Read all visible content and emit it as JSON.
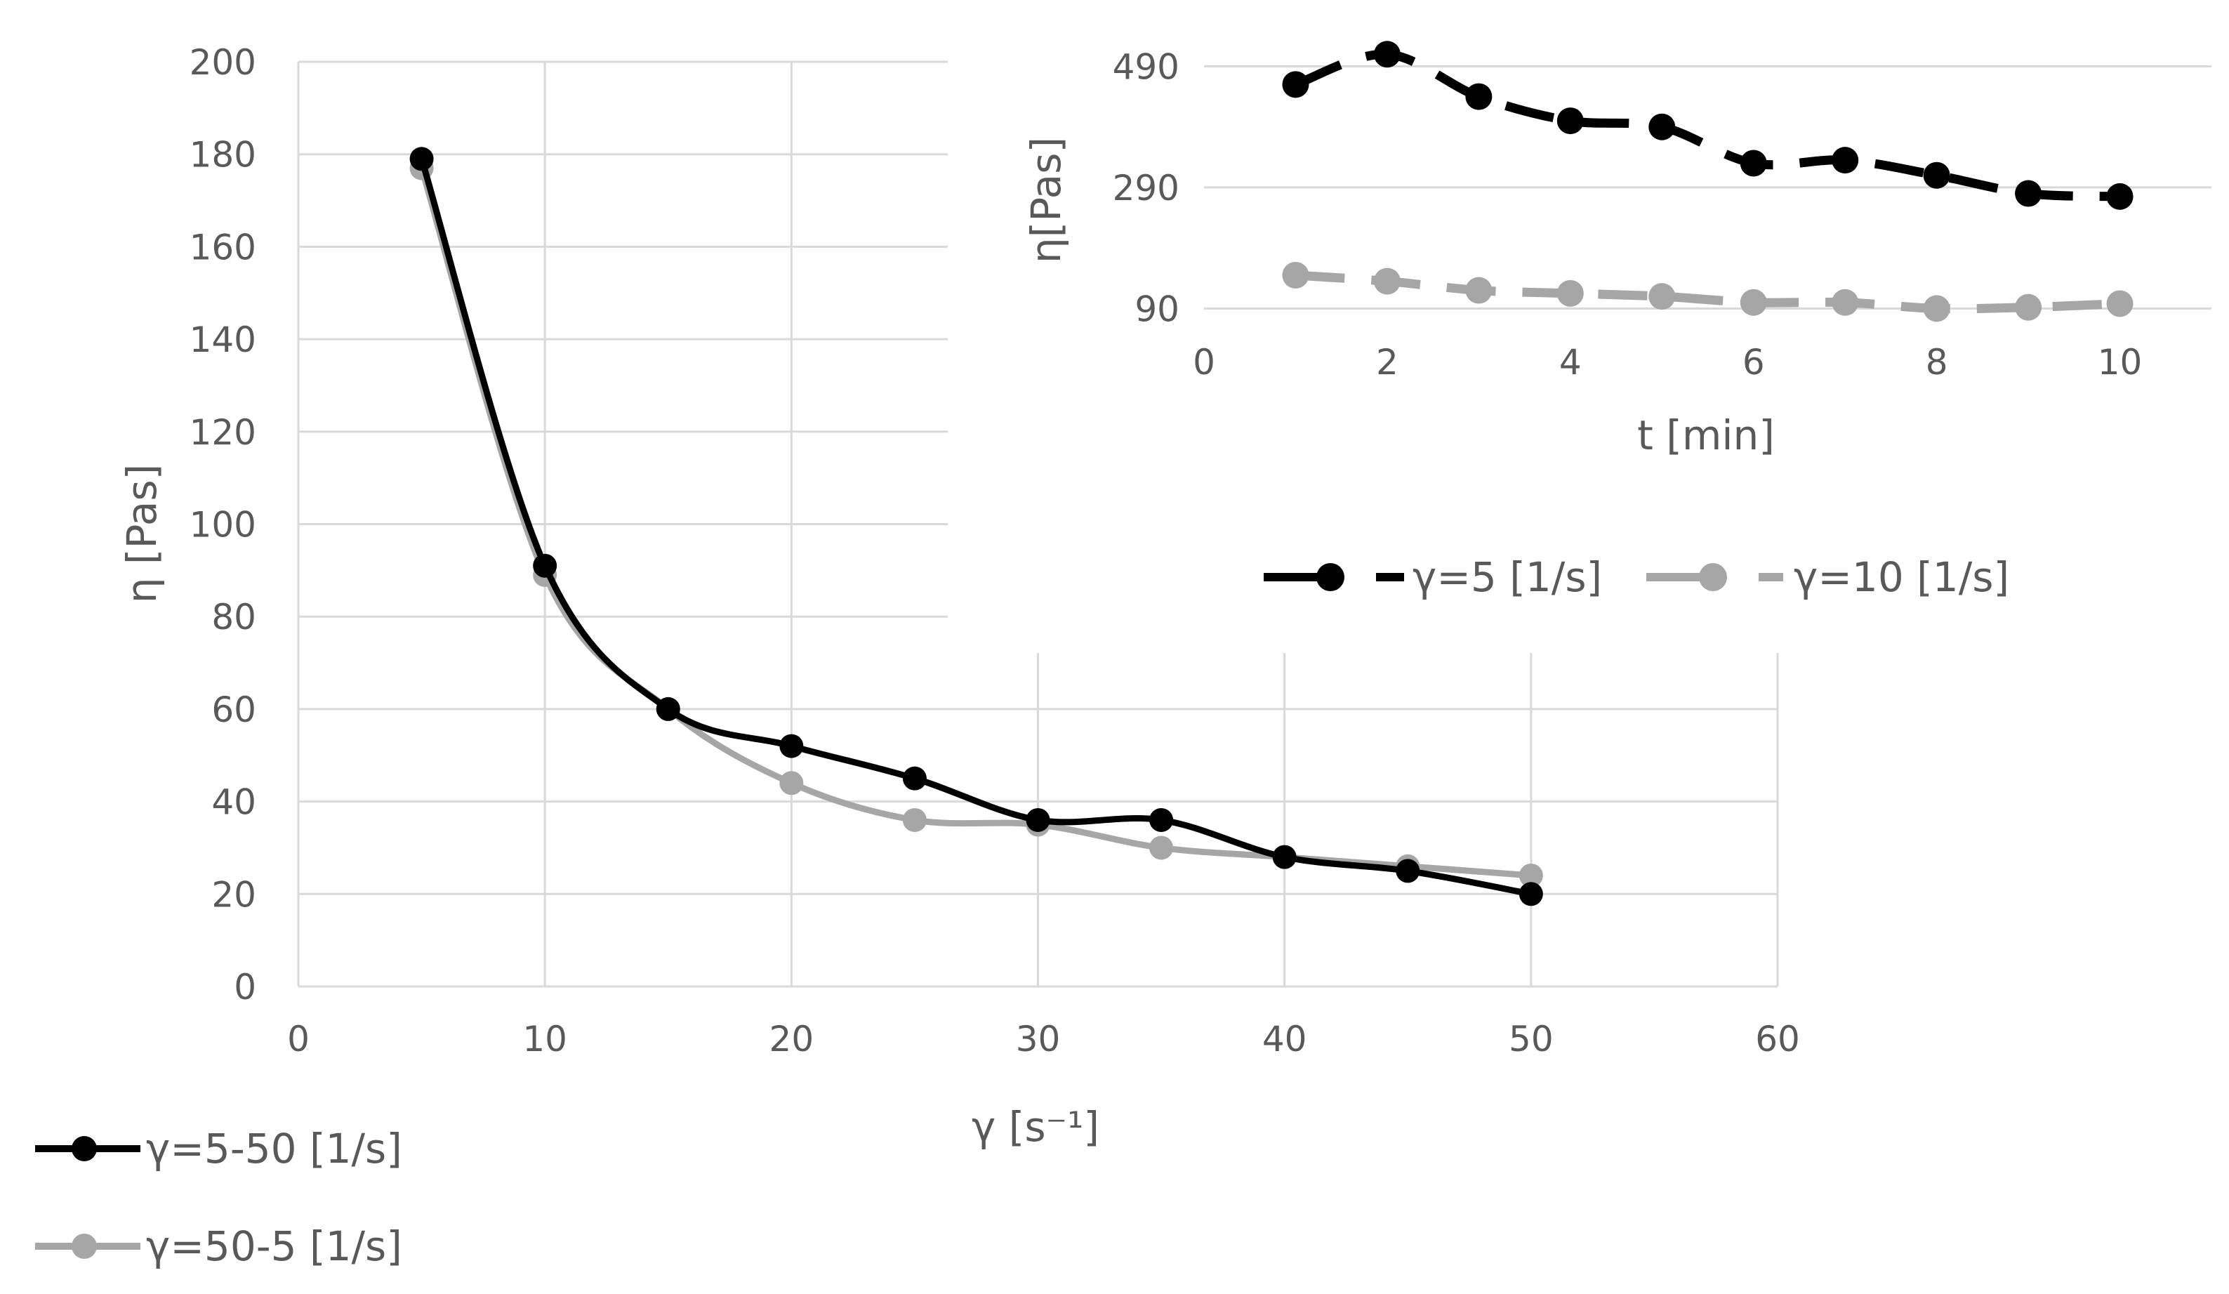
{
  "chart_data": [
    {
      "id": "main",
      "type": "line",
      "title": "",
      "xlabel": "γ [s⁻¹]",
      "ylabel": "η [Pas]",
      "xlim": [
        0,
        60
      ],
      "ylim": [
        0,
        200
      ],
      "xticks": [
        0,
        10,
        20,
        30,
        40,
        50,
        60
      ],
      "yticks": [
        0,
        20,
        40,
        60,
        80,
        100,
        120,
        140,
        160,
        180,
        200
      ],
      "grid": true,
      "legend_position": "bottom-left",
      "series": [
        {
          "name": "γ=5-50 [1/s]",
          "color": "#000000",
          "x": [
            5,
            10,
            15,
            20,
            25,
            30,
            35,
            40,
            45,
            50
          ],
          "y": [
            179,
            91,
            60,
            52,
            45,
            36,
            36,
            28,
            25,
            20
          ]
        },
        {
          "name": "γ=50-5 [1/s]",
          "color": "#a6a6a6",
          "x": [
            5,
            10,
            15,
            20,
            25,
            30,
            35,
            40,
            45,
            50
          ],
          "y": [
            177,
            89,
            60,
            44,
            36,
            35,
            30,
            28,
            26,
            24
          ]
        }
      ]
    },
    {
      "id": "inset",
      "type": "line",
      "title": "",
      "xlabel": "t [min]",
      "ylabel": "η[Pas]",
      "xlim": [
        0,
        11
      ],
      "ylim": [
        80,
        530
      ],
      "xticks": [
        0,
        2,
        4,
        6,
        8,
        10
      ],
      "yticks": [
        90,
        290,
        490
      ],
      "grid": true,
      "legend_position": "bottom",
      "series": [
        {
          "name": "γ=5 [1/s]",
          "color": "#000000",
          "dashed": true,
          "x": [
            1,
            2,
            3,
            4,
            5,
            6,
            7,
            8,
            9,
            10
          ],
          "y": [
            460,
            510,
            440,
            400,
            390,
            330,
            335,
            310,
            280,
            275
          ]
        },
        {
          "name": "γ=10 [1/s]",
          "color": "#a6a6a6",
          "dashed": true,
          "x": [
            1,
            2,
            3,
            4,
            5,
            6,
            7,
            8,
            9,
            10
          ],
          "y": [
            145,
            135,
            120,
            115,
            110,
            100,
            100,
            90,
            92,
            98
          ]
        }
      ]
    }
  ]
}
